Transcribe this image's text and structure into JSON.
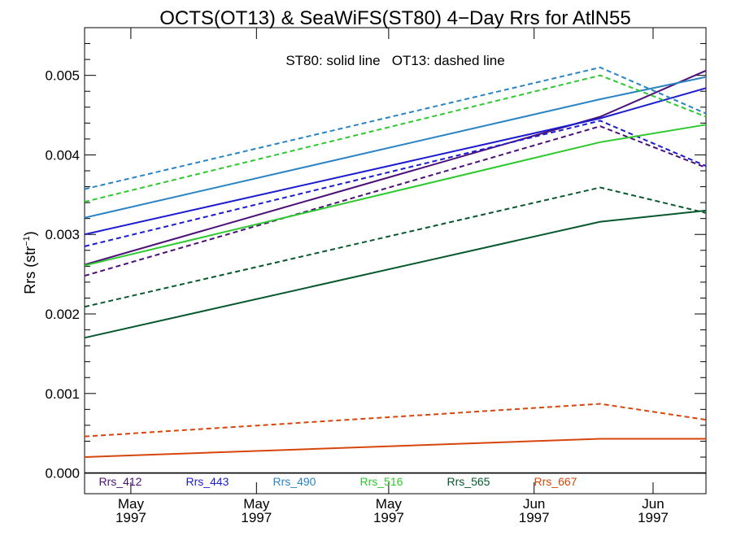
{
  "chart_data": {
    "type": "line",
    "title": "OCTS(OT13) & SeaWiFS(ST80) 4−Day Rrs for AtlN55",
    "subtitle": "ST80: solid line   OT13: dashed line",
    "ylabel_main": "Rrs (str",
    "ylabel_sup": "−1",
    "ylabel_tail": ")",
    "xlabel": "",
    "ylim": [
      -0.00026,
      0.0056
    ],
    "x_domain": [
      0,
      4.7
    ],
    "x": [
      0,
      3.9,
      4.7
    ],
    "x_ticks": [
      {
        "x": 0.35,
        "label": [
          "May",
          "1997"
        ]
      },
      {
        "x": 1.3,
        "label": [
          "May",
          "1997"
        ]
      },
      {
        "x": 2.3,
        "label": [
          "May",
          "1997"
        ]
      },
      {
        "x": 3.4,
        "label": [
          "Jun",
          "1997"
        ]
      },
      {
        "x": 4.3,
        "label": [
          "Jun",
          "1997"
        ]
      }
    ],
    "y_ticks": [
      {
        "value": 0.0,
        "label": "0.000"
      },
      {
        "value": 0.001,
        "label": "0.001"
      },
      {
        "value": 0.002,
        "label": "0.002"
      },
      {
        "value": 0.003,
        "label": "0.003"
      },
      {
        "value": 0.004,
        "label": "0.004"
      },
      {
        "value": 0.005,
        "label": "0.005"
      }
    ],
    "zero_line": true,
    "legend_placement": "bottom",
    "series": [
      {
        "name": "Rrs_412",
        "color": "#4b0f78",
        "style": "solid",
        "values": [
          0.00262,
          0.00448,
          0.00506
        ]
      },
      {
        "name": "Rrs_412",
        "color": "#4b0f78",
        "style": "dashed",
        "values": [
          0.00248,
          0.00436,
          0.00384
        ]
      },
      {
        "name": "Rrs_443",
        "color": "#1c1ccf",
        "style": "solid",
        "values": [
          0.003,
          0.00446,
          0.00484
        ]
      },
      {
        "name": "Rrs_443",
        "color": "#1c1ccf",
        "style": "dashed",
        "values": [
          0.00285,
          0.00443,
          0.00386
        ]
      },
      {
        "name": "Rrs_490",
        "color": "#2a84c4",
        "style": "solid",
        "values": [
          0.00321,
          0.0047,
          0.00498
        ]
      },
      {
        "name": "Rrs_490",
        "color": "#2a84c4",
        "style": "dashed",
        "values": [
          0.00357,
          0.0051,
          0.00452
        ]
      },
      {
        "name": "Rrs_516",
        "color": "#2ec92e",
        "style": "solid",
        "values": [
          0.00261,
          0.00416,
          0.00438
        ]
      },
      {
        "name": "Rrs_516",
        "color": "#2ec92e",
        "style": "dashed",
        "values": [
          0.00341,
          0.005,
          0.00448
        ]
      },
      {
        "name": "Rrs_565",
        "color": "#08582e",
        "style": "solid",
        "values": [
          0.0017,
          0.00316,
          0.0033
        ]
      },
      {
        "name": "Rrs_565",
        "color": "#08582e",
        "style": "dashed",
        "values": [
          0.00209,
          0.00359,
          0.00327
        ]
      },
      {
        "name": "Rrs_667",
        "color": "#d6460c",
        "style": "solid",
        "values": [
          0.0002,
          0.00043,
          0.00043
        ]
      },
      {
        "name": "Rrs_667",
        "color": "#d6460c",
        "style": "dashed",
        "values": [
          0.00046,
          0.00087,
          0.00067
        ]
      }
    ],
    "legend": [
      {
        "label": "Rrs_412",
        "color": "#4b0f78"
      },
      {
        "label": "Rrs_443",
        "color": "#1c1ccf"
      },
      {
        "label": "Rrs_490",
        "color": "#2a84c4"
      },
      {
        "label": "Rrs_516",
        "color": "#2ec92e"
      },
      {
        "label": "Rrs_565",
        "color": "#08582e"
      },
      {
        "label": "Rrs_667",
        "color": "#d6460c"
      }
    ]
  }
}
